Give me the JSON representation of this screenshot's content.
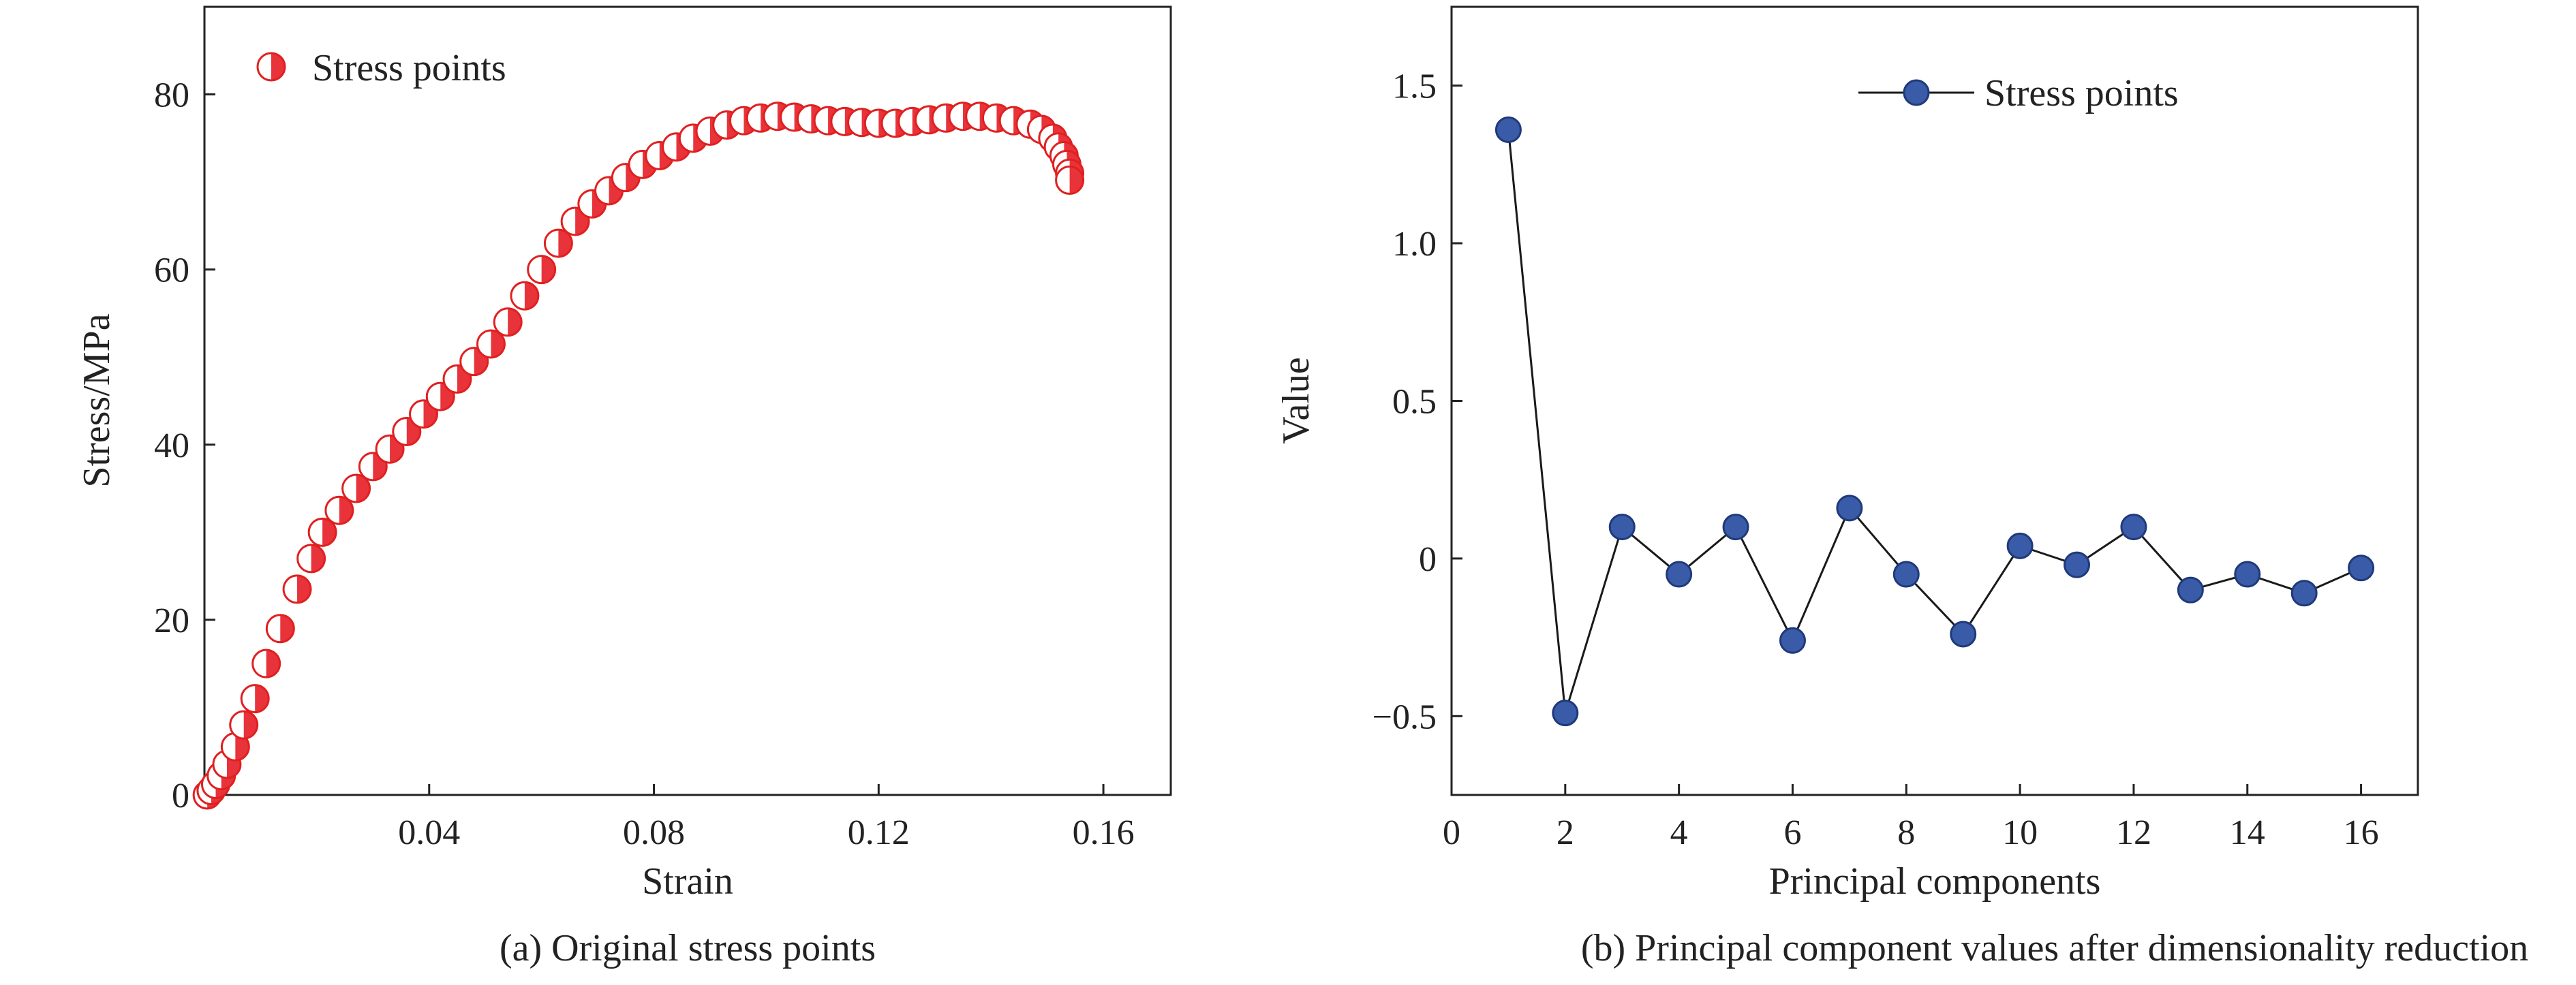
{
  "chart_data": [
    {
      "type": "scatter",
      "caption": "(a) Original stress points",
      "xlabel": "Strain",
      "ylabel": "Stress/MPa",
      "xlim": [
        0.0,
        0.172
      ],
      "ylim": [
        0,
        90
      ],
      "xticks": [
        0.04,
        0.08,
        0.12,
        0.16
      ],
      "xtick_labels": [
        "0.04",
        "0.08",
        "0.12",
        "0.16"
      ],
      "yticks": [
        0,
        20,
        40,
        60,
        80
      ],
      "ytick_labels": [
        "0",
        "20",
        "40",
        "60",
        "80"
      ],
      "legend": {
        "position": "top-left",
        "label": "Stress points"
      },
      "marker_colors": {
        "fill": "#e8333a",
        "edge": "#e02020",
        "half": "#ffffff"
      },
      "series": [
        {
          "name": "Stress points",
          "x": [
            0.0005,
            0.0012,
            0.002,
            0.003,
            0.004,
            0.0055,
            0.007,
            0.009,
            0.011,
            0.0135,
            0.0165,
            0.019,
            0.021,
            0.024,
            0.027,
            0.03,
            0.033,
            0.036,
            0.039,
            0.042,
            0.045,
            0.048,
            0.051,
            0.054,
            0.057,
            0.06,
            0.063,
            0.066,
            0.069,
            0.072,
            0.075,
            0.078,
            0.081,
            0.084,
            0.087,
            0.09,
            0.093,
            0.096,
            0.099,
            0.102,
            0.105,
            0.108,
            0.111,
            0.114,
            0.117,
            0.12,
            0.123,
            0.126,
            0.129,
            0.132,
            0.135,
            0.138,
            0.141,
            0.144,
            0.147,
            0.149,
            0.151,
            0.152,
            0.153,
            0.1535,
            0.154,
            0.154
          ],
          "y": [
            0.0,
            0.5,
            1.2,
            2.2,
            3.5,
            5.5,
            8.0,
            11.0,
            15.0,
            19.0,
            23.5,
            27.0,
            30.0,
            32.5,
            35.0,
            37.5,
            39.5,
            41.5,
            43.5,
            45.5,
            47.5,
            49.5,
            51.5,
            54.0,
            57.0,
            60.0,
            63.0,
            65.5,
            67.5,
            69.0,
            70.5,
            72.0,
            73.0,
            74.0,
            75.0,
            75.8,
            76.5,
            77.0,
            77.3,
            77.5,
            77.4,
            77.2,
            77.0,
            76.9,
            76.8,
            76.7,
            76.7,
            76.9,
            77.1,
            77.3,
            77.5,
            77.5,
            77.3,
            77.0,
            76.6,
            76.0,
            75.0,
            74.0,
            73.0,
            72.0,
            71.0,
            70.2
          ]
        }
      ]
    },
    {
      "type": "line",
      "caption": "(b) Principal component values after dimensionality reduction",
      "xlabel": "Principal components",
      "ylabel": "Value",
      "xlim": [
        0,
        17
      ],
      "ylim": [
        -0.75,
        1.75
      ],
      "xticks": [
        0,
        2,
        4,
        6,
        8,
        10,
        12,
        14,
        16
      ],
      "xtick_labels": [
        "0",
        "2",
        "4",
        "6",
        "8",
        "10",
        "12",
        "14",
        "16"
      ],
      "yticks": [
        -0.5,
        0,
        0.5,
        1.0,
        1.5
      ],
      "ytick_labels": [
        "−0.5",
        "0",
        "0.5",
        "1.0",
        "1.5"
      ],
      "legend": {
        "position": "top-right",
        "label": "Stress points"
      },
      "marker_colors": {
        "fill": "#3a5ba8",
        "edge": "#1f3a7a",
        "line": "#1a1a1a"
      },
      "series": [
        {
          "name": "Stress points",
          "x": [
            1,
            2,
            3,
            4,
            5,
            6,
            7,
            8,
            9,
            10,
            11,
            12,
            13,
            14,
            15,
            16
          ],
          "y": [
            1.36,
            -0.49,
            0.1,
            -0.05,
            0.1,
            -0.26,
            0.16,
            -0.05,
            -0.24,
            0.04,
            -0.02,
            0.1,
            -0.1,
            -0.05,
            -0.11,
            -0.03
          ]
        }
      ]
    }
  ]
}
